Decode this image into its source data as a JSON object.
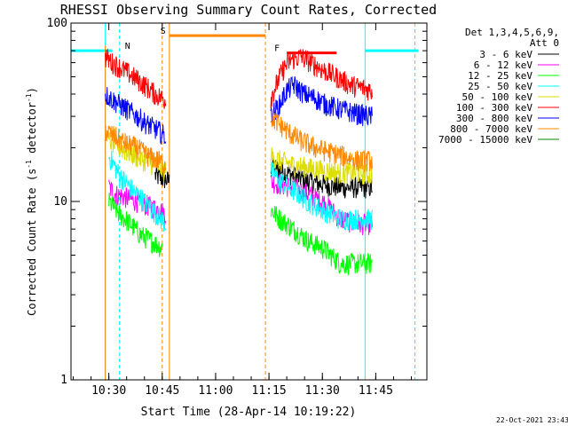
{
  "chart_data": {
    "type": "line",
    "title": "RHESSI Observing Summary Count Rates, Corrected",
    "xlabel": "Start Time (28-Apr-14 10:19:22)",
    "ylabel_main": "Corrected Count Rate (s",
    "ylabel_exp1": "-1",
    "ylabel_mid": " detector",
    "ylabel_exp2": "-1",
    "ylabel_end": ")",
    "y_scale": "log",
    "ylim": [
      1,
      100
    ],
    "xlim": [
      "10:19:22",
      "11:59:22"
    ],
    "x_ticks": [
      "10:30",
      "10:45",
      "11:00",
      "11:15",
      "11:30",
      "11:45"
    ],
    "y_ticks": [
      "1",
      "10",
      "100"
    ],
    "grid": false,
    "timestamp": "22-Oct-2021 23:43",
    "legend_position": "top-right",
    "legend_header": [
      "Det 1,3,4,5,6,9,",
      "Att 0"
    ],
    "series": [
      {
        "name": "3 - 6 keV",
        "color": "#000000",
        "x": [
          "10:43",
          "10:47",
          "11:15:30",
          "11:18",
          "11:22",
          "11:26",
          "11:30",
          "11:35",
          "11:40",
          "11:44"
        ],
        "y": [
          14,
          13,
          16,
          15,
          14,
          13,
          12.5,
          12,
          12,
          12
        ]
      },
      {
        "name": "6 - 12 keV",
        "color": "#ff00ff",
        "x": [
          "10:30",
          "10:32",
          "10:35",
          "10:38",
          "10:41",
          "10:44",
          "10:46",
          "11:15:30",
          "11:18",
          "11:22",
          "11:26",
          "11:30",
          "11:35",
          "11:40",
          "11:44"
        ],
        "y": [
          12,
          11,
          10.5,
          10,
          9.5,
          9,
          8.5,
          13,
          12.5,
          12,
          11,
          10,
          8,
          7.5,
          7.5
        ]
      },
      {
        "name": "12 - 25 keV",
        "color": "#00ff00",
        "x": [
          "10:30",
          "10:33",
          "10:36",
          "10:39",
          "10:42",
          "10:45",
          "11:15:30",
          "11:18",
          "11:22",
          "11:26",
          "11:30",
          "11:35",
          "11:40",
          "11:44"
        ],
        "y": [
          10,
          8.5,
          7.5,
          6.5,
          6,
          5.5,
          9,
          8,
          7,
          6,
          5.5,
          4.5,
          4.5,
          4.5
        ]
      },
      {
        "name": "25 - 50 keV",
        "color": "#00ffff",
        "x": [
          "10:30",
          "10:33",
          "10:36",
          "10:39",
          "10:42",
          "10:46",
          "11:15:30",
          "11:18",
          "11:22",
          "11:26",
          "11:30",
          "11:35",
          "11:40",
          "11:44"
        ],
        "y": [
          18,
          14,
          12,
          10.5,
          9,
          7.5,
          15,
          13,
          11.5,
          10,
          9,
          8,
          8,
          8
        ]
      },
      {
        "name": "50 - 100 keV",
        "color": "#dddd00",
        "x": [
          "10:30",
          "10:35",
          "10:40",
          "10:46",
          "11:15:30",
          "11:18",
          "11:22",
          "11:26",
          "11:30",
          "11:35",
          "11:40",
          "11:44"
        ],
        "y": [
          22,
          19,
          17,
          15,
          18,
          17,
          16,
          15.5,
          15,
          14.5,
          14.5,
          14
        ]
      },
      {
        "name": "100 - 300 keV",
        "color": "#ff0000",
        "x": [
          "10:29",
          "10:31",
          "10:34",
          "10:37",
          "10:40",
          "10:43",
          "10:46",
          "11:15:30",
          "11:17",
          "11:19",
          "11:21",
          "11:24",
          "11:27",
          "11:30",
          "11:34",
          "11:38",
          "11:44"
        ],
        "y": [
          65,
          60,
          55,
          50,
          45,
          40,
          37,
          38,
          45,
          55,
          62,
          65,
          60,
          55,
          50,
          45,
          42
        ]
      },
      {
        "name": "300 - 800 keV",
        "color": "#0000ff",
        "x": [
          "10:29",
          "10:32",
          "10:35",
          "10:38",
          "10:41",
          "10:44",
          "10:46",
          "11:15:30",
          "11:18",
          "11:20",
          "11:22",
          "11:25",
          "11:28",
          "11:31",
          "11:35",
          "11:40",
          "11:44"
        ],
        "y": [
          40,
          36,
          33,
          30,
          27,
          25,
          23,
          30,
          35,
          42,
          45,
          40,
          38,
          35,
          33,
          31,
          30
        ]
      },
      {
        "name": "800 - 7000 keV",
        "color": "#ff8800",
        "x": [
          "10:29",
          "10:32",
          "10:35",
          "10:38",
          "10:41",
          "10:44",
          "10:46",
          "11:15:30",
          "11:18",
          "11:21",
          "11:24",
          "11:28",
          "11:32",
          "11:36",
          "11:40",
          "11:44"
        ],
        "y": [
          25,
          23,
          21,
          20,
          18,
          17,
          16,
          30,
          27,
          24,
          22,
          20,
          19,
          18,
          17,
          17
        ]
      },
      {
        "name": "7000 - 15000 keV",
        "color": "#008800",
        "x": [],
        "y": []
      }
    ],
    "flags": [
      {
        "label": "N",
        "color": "#00ffff"
      },
      {
        "label": "S",
        "color": "#ff8800"
      },
      {
        "label": "F",
        "color": "#ff0000"
      }
    ]
  }
}
